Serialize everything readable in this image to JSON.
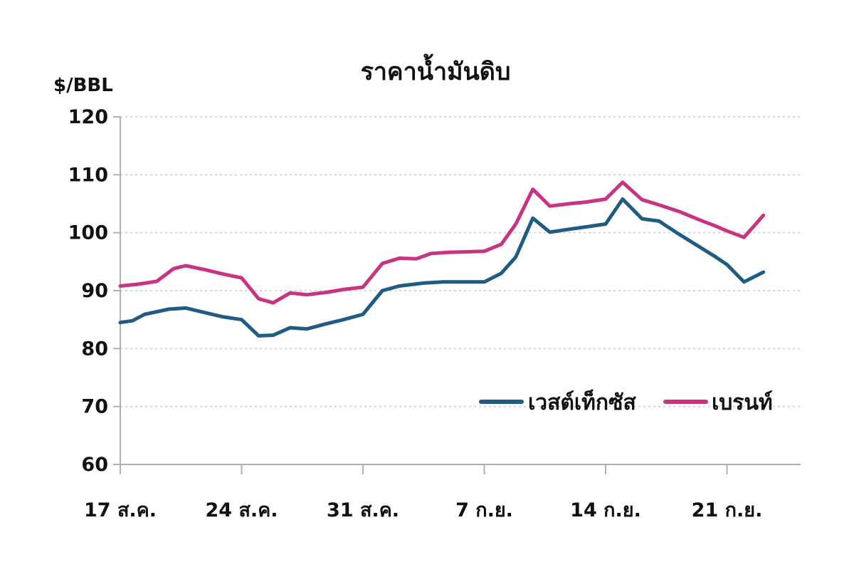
{
  "chart_data": {
    "type": "line",
    "title": "ราคาน้ำมันดิบ",
    "ylabel": "$/BBL",
    "xlabel": "",
    "ylim": [
      60,
      120
    ],
    "yticks": [
      60,
      70,
      80,
      90,
      100,
      110,
      120
    ],
    "grid": true,
    "legend_position": "bottom-right",
    "x_tick_labels": [
      {
        "label": "17 ส.ค.",
        "index": 0
      },
      {
        "label": "24 ส.ค.",
        "index": 5
      },
      {
        "label": "31 ส.ค.",
        "index": 10
      },
      {
        "label": "7 ก.ย.",
        "index": 15
      },
      {
        "label": "14 ก.ย.",
        "index": 20
      },
      {
        "label": "21 ก.ย.",
        "index": 25
      }
    ],
    "x_index_max": 27,
    "series": [
      {
        "name": "เวสต์เท็กซัส",
        "color": "#1f5b82",
        "points": [
          [
            0,
            84.5
          ],
          [
            0.5,
            84.8
          ],
          [
            1,
            85.9
          ],
          [
            2,
            86.8
          ],
          [
            2.7,
            87.0
          ],
          [
            3.5,
            86.2
          ],
          [
            4.2,
            85.5
          ],
          [
            5,
            85.0
          ],
          [
            5.7,
            82.2
          ],
          [
            6.3,
            82.3
          ],
          [
            7,
            83.6
          ],
          [
            7.7,
            83.4
          ],
          [
            8.5,
            84.3
          ],
          [
            9.2,
            85.0
          ],
          [
            10,
            85.9
          ],
          [
            10.8,
            90.0
          ],
          [
            11.5,
            90.8
          ],
          [
            12.5,
            91.3
          ],
          [
            13.3,
            91.5
          ],
          [
            14,
            91.5
          ],
          [
            15,
            91.5
          ],
          [
            15.7,
            93.0
          ],
          [
            16.3,
            95.8
          ],
          [
            17,
            102.5
          ],
          [
            17.7,
            100.1
          ],
          [
            18.5,
            100.6
          ],
          [
            19.2,
            101.0
          ],
          [
            20,
            101.5
          ],
          [
            20.7,
            105.8
          ],
          [
            21.5,
            102.4
          ],
          [
            22.2,
            102.0
          ],
          [
            23,
            99.8
          ],
          [
            24,
            97.2
          ],
          [
            24.5,
            95.9
          ],
          [
            25,
            94.5
          ],
          [
            25.7,
            91.5
          ],
          [
            26.5,
            93.2
          ]
        ]
      },
      {
        "name": "เบรนท์",
        "color": "#c7347f",
        "points": [
          [
            0,
            90.8
          ],
          [
            0.7,
            91.1
          ],
          [
            1.5,
            91.6
          ],
          [
            2.2,
            93.8
          ],
          [
            2.7,
            94.3
          ],
          [
            3.5,
            93.6
          ],
          [
            4.2,
            92.9
          ],
          [
            5,
            92.2
          ],
          [
            5.7,
            88.6
          ],
          [
            6.3,
            87.9
          ],
          [
            7,
            89.6
          ],
          [
            7.7,
            89.3
          ],
          [
            8.5,
            89.7
          ],
          [
            9.2,
            90.2
          ],
          [
            10,
            90.6
          ],
          [
            10.8,
            94.7
          ],
          [
            11.5,
            95.6
          ],
          [
            12.2,
            95.5
          ],
          [
            12.8,
            96.4
          ],
          [
            13.5,
            96.6
          ],
          [
            15,
            96.8
          ],
          [
            15.7,
            98.0
          ],
          [
            16.3,
            101.5
          ],
          [
            17,
            107.5
          ],
          [
            17.7,
            104.6
          ],
          [
            18.5,
            105.0
          ],
          [
            19.2,
            105.3
          ],
          [
            20,
            105.8
          ],
          [
            20.7,
            108.7
          ],
          [
            21.5,
            105.7
          ],
          [
            22.2,
            104.8
          ],
          [
            23,
            103.7
          ],
          [
            24,
            102.0
          ],
          [
            24.5,
            101.2
          ],
          [
            25,
            100.3
          ],
          [
            25.7,
            99.2
          ],
          [
            26.5,
            103.0
          ]
        ]
      }
    ]
  }
}
